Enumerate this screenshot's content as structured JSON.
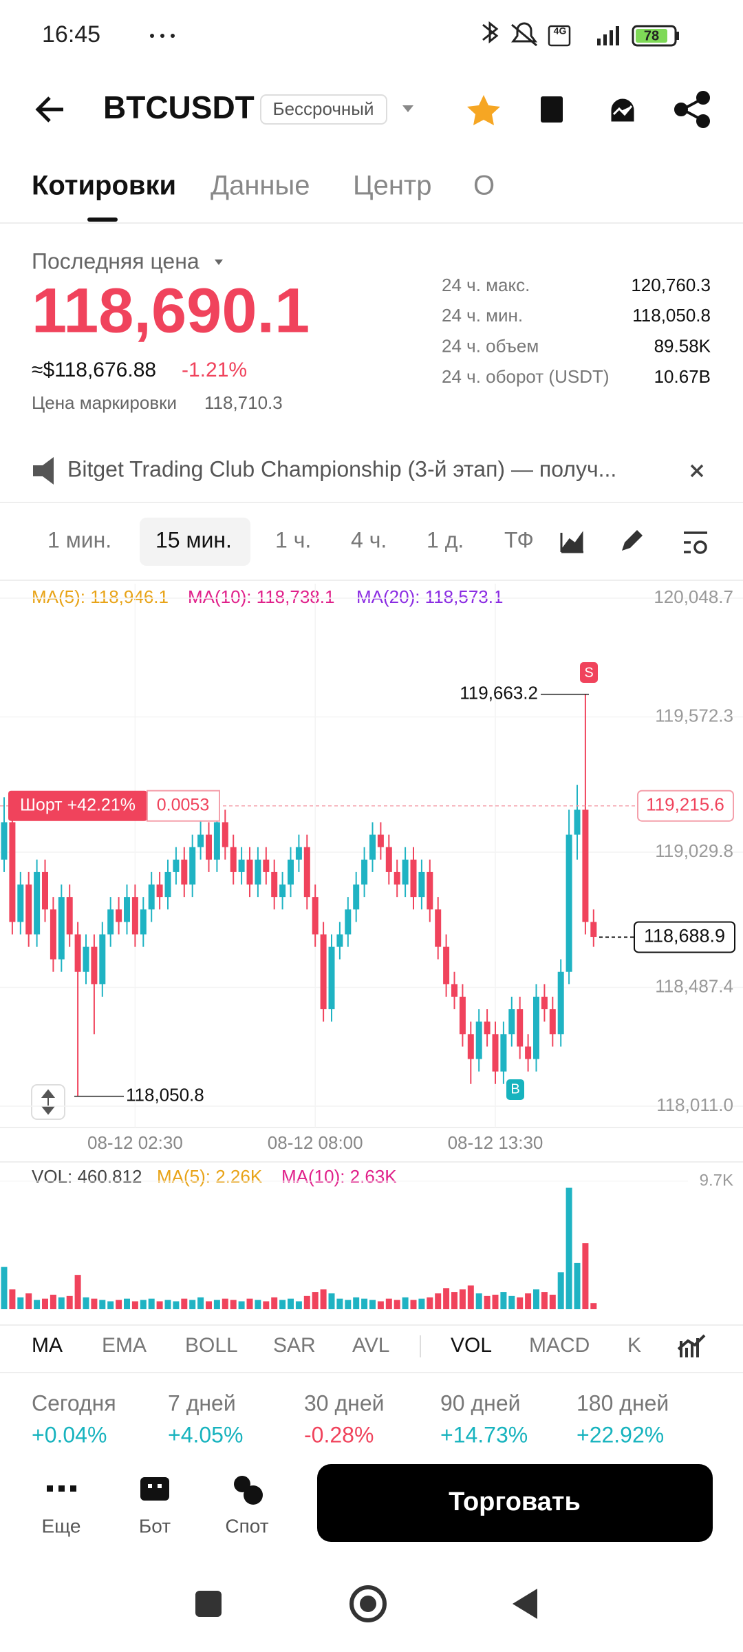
{
  "status": {
    "time": "16:45",
    "network": "4G",
    "battery": "78"
  },
  "header": {
    "symbol": "BTCUSDT",
    "badge": "Бессрочный"
  },
  "tabs": [
    "Котировки",
    "Данные",
    "Центр",
    "О"
  ],
  "price": {
    "label": "Последняя цена",
    "last": "118,690.1",
    "usd": "≈$118,676.88",
    "change": "-1.21%",
    "mark_label": "Цена маркировки",
    "mark": "118,710.3"
  },
  "stats": [
    {
      "label": "24 ч. макс.",
      "value": "120,760.3"
    },
    {
      "label": "24 ч. мин.",
      "value": "118,050.8"
    },
    {
      "label": "24 ч. объем",
      "value": "89.58K"
    },
    {
      "label": "24 ч. оборот (USDT)",
      "value": "10.67B"
    }
  ],
  "banner": "Bitget Trading Club Championship (3-й этап) — получ...",
  "timeframes": [
    "1 мин.",
    "15 мин.",
    "1 ч.",
    "4 ч.",
    "1 д.",
    "ТФ"
  ],
  "chart_data": {
    "type": "candlestick",
    "ma_legend": [
      "MA(5): 118,946.1",
      "MA(10): 118,738.1",
      "MA(20): 118,573.1"
    ],
    "ylim": [
      118011.0,
      120048.7
    ],
    "yticks": [
      {
        "value": 120048.7,
        "label": "120,048.7"
      },
      {
        "value": 119572.3,
        "label": "119,572.3"
      },
      {
        "value": 119029.8,
        "label": "119,029.8"
      },
      {
        "value": 118487.4,
        "label": "118,487.4"
      },
      {
        "value": 118011.0,
        "label": "118,011.0"
      }
    ],
    "xticks": [
      {
        "value": 16,
        "label": "08-12 02:30"
      },
      {
        "value": 38,
        "label": "08-12 08:00"
      },
      {
        "value": 60,
        "label": "08-12 13:30"
      }
    ],
    "up_color": "#1fb3c3",
    "down_color": "#f0435c",
    "candles": [
      [
        119000,
        119250,
        118950,
        119150
      ],
      [
        119150,
        119200,
        118700,
        118750
      ],
      [
        118750,
        118950,
        118700,
        118900
      ],
      [
        118900,
        118950,
        118650,
        118700
      ],
      [
        118700,
        119000,
        118650,
        118950
      ],
      [
        118950,
        119000,
        118750,
        118800
      ],
      [
        118800,
        118850,
        118550,
        118600
      ],
      [
        118600,
        118900,
        118550,
        118850
      ],
      [
        118850,
        118900,
        118650,
        118700
      ],
      [
        118700,
        118750,
        118050.8,
        118550
      ],
      [
        118550,
        118700,
        118500,
        118650
      ],
      [
        118650,
        118700,
        118300,
        118500
      ],
      [
        118500,
        118750,
        118450,
        118700
      ],
      [
        118700,
        118850,
        118650,
        118800
      ],
      [
        118800,
        118850,
        118700,
        118750
      ],
      [
        118750,
        118900,
        118700,
        118850
      ],
      [
        118850,
        118900,
        118650,
        118700
      ],
      [
        118700,
        118850,
        118650,
        118800
      ],
      [
        118800,
        118950,
        118750,
        118900
      ],
      [
        118900,
        118950,
        118800,
        118850
      ],
      [
        118850,
        119000,
        118800,
        118950
      ],
      [
        118950,
        119050,
        118900,
        119000
      ],
      [
        119000,
        119050,
        118850,
        118900
      ],
      [
        118900,
        119100,
        118850,
        119050
      ],
      [
        119050,
        119200,
        119000,
        119100
      ],
      [
        119100,
        119150,
        118950,
        119000
      ],
      [
        119000,
        119200,
        118950,
        119150
      ],
      [
        119150,
        119200,
        119000,
        119050
      ],
      [
        119050,
        119100,
        118900,
        118950
      ],
      [
        118950,
        119050,
        118900,
        119000
      ],
      [
        119000,
        119050,
        118850,
        118900
      ],
      [
        118900,
        119050,
        118850,
        119000
      ],
      [
        119000,
        119050,
        118900,
        118950
      ],
      [
        118950,
        119000,
        118800,
        118850
      ],
      [
        118850,
        118950,
        118800,
        118900
      ],
      [
        118900,
        119050,
        118850,
        119000
      ],
      [
        119000,
        119100,
        118950,
        119050
      ],
      [
        119050,
        119100,
        118800,
        118850
      ],
      [
        118850,
        118900,
        118650,
        118700
      ],
      [
        118700,
        118750,
        118350,
        118400
      ],
      [
        118400,
        118700,
        118350,
        118650
      ],
      [
        118650,
        118750,
        118600,
        118700
      ],
      [
        118700,
        118850,
        118650,
        118800
      ],
      [
        118800,
        118950,
        118750,
        118900
      ],
      [
        118900,
        119050,
        118850,
        119000
      ],
      [
        119000,
        119150,
        118950,
        119100
      ],
      [
        119100,
        119150,
        119000,
        119050
      ],
      [
        119050,
        119100,
        118900,
        118950
      ],
      [
        118950,
        119000,
        118850,
        118900
      ],
      [
        118900,
        119050,
        118850,
        119000
      ],
      [
        119000,
        119050,
        118800,
        118850
      ],
      [
        118850,
        119000,
        118800,
        118950
      ],
      [
        118950,
        119000,
        118750,
        118800
      ],
      [
        118800,
        118850,
        118600,
        118650
      ],
      [
        118650,
        118700,
        118450,
        118500
      ],
      [
        118500,
        118550,
        118400,
        118450
      ],
      [
        118450,
        118500,
        118250,
        118300
      ],
      [
        118300,
        118350,
        118100,
        118200
      ],
      [
        118200,
        118400,
        118150,
        118350
      ],
      [
        118350,
        118400,
        118250,
        118300
      ],
      [
        118300,
        118350,
        118100,
        118150
      ],
      [
        118150,
        118350,
        118100,
        118300
      ],
      [
        118300,
        118450,
        118250,
        118400
      ],
      [
        118400,
        118450,
        118200,
        118250
      ],
      [
        118250,
        118300,
        118150,
        118200
      ],
      [
        118200,
        118500,
        118150,
        118450
      ],
      [
        118450,
        118500,
        118350,
        118400
      ],
      [
        118400,
        118450,
        118250,
        118300
      ],
      [
        118300,
        118600,
        118250,
        118550
      ],
      [
        118550,
        119200,
        118500,
        119100
      ],
      [
        119100,
        119300,
        119000,
        119200
      ],
      [
        119200,
        119663.2,
        118700,
        118750
      ],
      [
        118750,
        118800,
        118650,
        118690.1
      ]
    ],
    "high_label": {
      "value": 119663.2,
      "label": "119,663.2"
    },
    "low_label": {
      "value": 118050.8,
      "label": "118,050.8"
    },
    "sell_marker": "S",
    "buy_marker": "B",
    "position": {
      "label": "Шорт +42.21%",
      "size": "0.0053",
      "price": {
        "value": 119215.6,
        "label": "119,215.6"
      }
    },
    "last_price": {
      "value": 118688.9,
      "label": "118,688.9"
    }
  },
  "volume": {
    "legend": [
      "VOL: 460.812",
      "MA(5): 2.26K",
      "MA(10): 2.63K"
    ],
    "yticks": [
      {
        "value": 9700,
        "label": "9.7K"
      }
    ],
    "values": [
      3200,
      1500,
      900,
      1200,
      700,
      800,
      1100,
      900,
      1000,
      2600,
      900,
      800,
      700,
      600,
      700,
      800,
      600,
      700,
      800,
      600,
      700,
      600,
      800,
      700,
      900,
      600,
      700,
      800,
      700,
      600,
      800,
      700,
      600,
      900,
      700,
      800,
      600,
      1000,
      1300,
      1500,
      1200,
      800,
      700,
      900,
      800,
      700,
      600,
      800,
      700,
      900,
      700,
      800,
      900,
      1200,
      1600,
      1300,
      1500,
      1800,
      1200,
      1000,
      1100,
      1300,
      1000,
      900,
      1200,
      1500,
      1300,
      1100,
      2800,
      9200,
      3500,
      5000,
      460.812
    ]
  },
  "indicators": [
    "MA",
    "EMA",
    "BOLL",
    "SAR",
    "AVL",
    "VOL",
    "MACD",
    "K"
  ],
  "performance": [
    {
      "label": "Сегодня",
      "value": "+0.04%"
    },
    {
      "label": "7 дней",
      "value": "+4.05%"
    },
    {
      "label": "30 дней",
      "value": "-0.28%"
    },
    {
      "label": "90 дней",
      "value": "+14.73%"
    },
    {
      "label": "180 дней",
      "value": "+22.92%"
    }
  ],
  "actions": [
    "Еще",
    "Бот",
    "Спот"
  ],
  "trade_button": "Торговать"
}
